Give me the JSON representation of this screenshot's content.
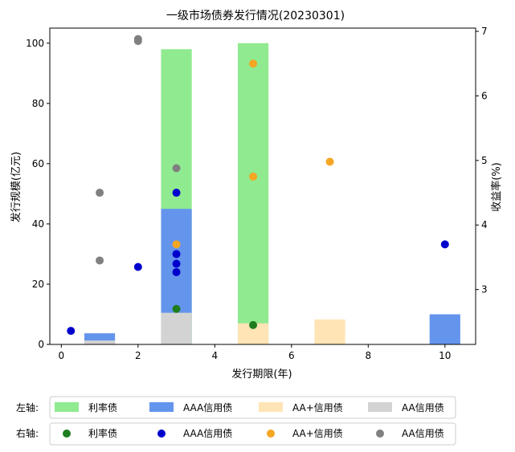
{
  "chart_data": {
    "type": "bar+scatter",
    "title": "一级市场债券发行情况(20230301)",
    "xlabel": "发行期限(年)",
    "ylabel_left": "发行规模(亿元)",
    "ylabel_right": "收益率(%)",
    "xlim": [
      -0.3,
      10.8
    ],
    "ylim_left": [
      0,
      105
    ],
    "ylim_right": [
      2.15,
      7.05
    ],
    "x_ticks": [
      0,
      2,
      4,
      6,
      8,
      10
    ],
    "y_left_ticks": [
      0,
      20,
      40,
      60,
      80,
      100
    ],
    "y_right_ticks": [
      3,
      4,
      5,
      6,
      7
    ],
    "bar_width": 0.8,
    "bar_series": [
      {
        "name": "利率债",
        "color": "#90ea90",
        "points": [
          {
            "x": 3,
            "y": 98
          },
          {
            "x": 5,
            "y": 100
          }
        ]
      },
      {
        "name": "AAA信用债",
        "color": "#6495ed",
        "points": [
          {
            "x": 1,
            "y": 3.7
          },
          {
            "x": 3,
            "y": 45
          },
          {
            "x": 10,
            "y": 10
          }
        ]
      },
      {
        "name": "AA+信用债",
        "color": "#ffe4b5",
        "points": [
          {
            "x": 5,
            "y": 7
          },
          {
            "x": 7,
            "y": 8.3
          }
        ]
      },
      {
        "name": "AA信用债",
        "color": "#d3d3d3",
        "points": [
          {
            "x": 1,
            "y": 1.3
          },
          {
            "x": 3,
            "y": 10.5
          }
        ]
      }
    ],
    "scatter_series": [
      {
        "name": "利率债",
        "color": "#1e7d1e",
        "points": [
          {
            "x": 3,
            "y": 2.7
          },
          {
            "x": 5,
            "y": 2.45
          }
        ]
      },
      {
        "name": "AAA信用债",
        "color": "#0000cd",
        "points": [
          {
            "x": 0.25,
            "y": 2.36
          },
          {
            "x": 2,
            "y": 3.35
          },
          {
            "x": 3,
            "y": 4.5
          },
          {
            "x": 3,
            "y": 3.55
          },
          {
            "x": 3,
            "y": 3.4
          },
          {
            "x": 3,
            "y": 3.27
          },
          {
            "x": 10,
            "y": 3.7
          }
        ]
      },
      {
        "name": "AA+信用债",
        "color": "#f5a623",
        "points": [
          {
            "x": 3,
            "y": 3.7
          },
          {
            "x": 5,
            "y": 6.5
          },
          {
            "x": 5,
            "y": 4.75
          },
          {
            "x": 7,
            "y": 4.98
          }
        ]
      },
      {
        "name": "AA信用债",
        "color": "#808080",
        "points": [
          {
            "x": 1,
            "y": 4.5
          },
          {
            "x": 1,
            "y": 3.45
          },
          {
            "x": 2,
            "y": 6.88
          },
          {
            "x": 2,
            "y": 6.85
          },
          {
            "x": 3,
            "y": 4.88
          }
        ]
      }
    ],
    "legend": {
      "placement": "bottom",
      "left_label": "左轴:",
      "right_label": "右轴:"
    }
  }
}
